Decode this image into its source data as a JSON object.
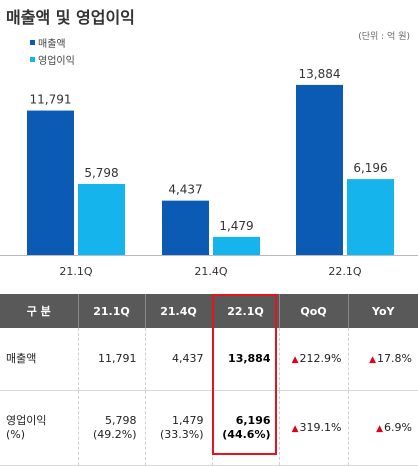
{
  "title": "매출액 및 영업이익",
  "unit": "(단위 : 억 원)",
  "colors": {
    "revenue": "#0b5bb5",
    "op_income": "#16b4ec",
    "table_header": "#595959",
    "highlight": "#e6141b",
    "up_arrow": "#e0001b"
  },
  "chart_data": {
    "type": "bar",
    "categories": [
      "21.1Q",
      "21.4Q",
      "22.1Q"
    ],
    "series": [
      {
        "name": "매출액",
        "values": [
          11791,
          4437,
          13884
        ],
        "labels": [
          "11,791",
          "4,437",
          "13,884"
        ]
      },
      {
        "name": "영업이익",
        "values": [
          5798,
          1479,
          6196
        ],
        "labels": [
          "5,798",
          "1,479",
          "6,196"
        ]
      }
    ],
    "ylim": [
      0,
      16000
    ],
    "grid": false,
    "legend": "top-left"
  },
  "table": {
    "headers": [
      "구 분",
      "21.1Q",
      "21.4Q",
      "22.1Q",
      "QoQ",
      "YoY"
    ],
    "rows": [
      {
        "label": "매출액",
        "label2": "",
        "v1": "11,791",
        "v1b": "",
        "v2": "4,437",
        "v2b": "",
        "v3": "13,884",
        "v3b": "",
        "qoq": "212.9%",
        "yoy": "17.8%"
      },
      {
        "label": "영업이익",
        "label2": "(%)",
        "v1": "5,798",
        "v1b": "(49.2%)",
        "v2": "1,479",
        "v2b": "(33.3%)",
        "v3": "6,196",
        "v3b": "(44.6%)",
        "qoq": "319.1%",
        "yoy": "6.9%"
      }
    ],
    "up_icon": "triangle-up"
  }
}
